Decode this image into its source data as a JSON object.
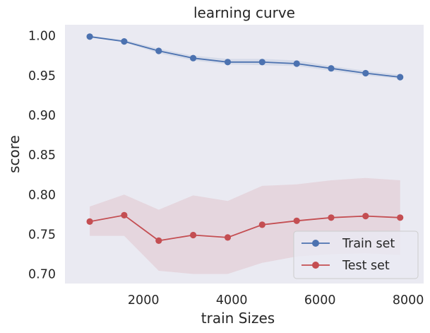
{
  "chart_data": {
    "type": "line",
    "title": "learning curve",
    "xlabel": "train Sizes",
    "ylabel": "score",
    "xlim": [
      220,
      8350
    ],
    "ylim": [
      0.688,
      1.014
    ],
    "xticks": [
      2000,
      4000,
      6000,
      8000
    ],
    "xtick_labels": [
      "2000",
      "4000",
      "6000",
      "8000"
    ],
    "yticks": [
      0.7,
      0.75,
      0.8,
      0.85,
      0.9,
      0.95,
      1.0
    ],
    "ytick_labels": [
      "0.70",
      "0.75",
      "0.80",
      "0.85",
      "0.90",
      "0.95",
      "1.00"
    ],
    "grid": false,
    "legend_position": "lower-right",
    "x": [
      782,
      1563,
      2345,
      3127,
      3909,
      4690,
      5472,
      6254,
      7035,
      7817
    ],
    "series": [
      {
        "name": "Train set",
        "color": "#4c72b0",
        "values": [
          0.999,
          0.993,
          0.981,
          0.972,
          0.967,
          0.967,
          0.965,
          0.959,
          0.953,
          0.948
        ],
        "band_upper": [
          1.0,
          0.995,
          0.984,
          0.975,
          0.971,
          0.971,
          0.969,
          0.962,
          0.956,
          0.951
        ],
        "band_lower": [
          0.998,
          0.992,
          0.978,
          0.969,
          0.964,
          0.963,
          0.962,
          0.956,
          0.95,
          0.946
        ]
      },
      {
        "name": "Test set",
        "color": "#c44e52",
        "values": [
          0.766,
          0.774,
          0.742,
          0.749,
          0.746,
          0.762,
          0.767,
          0.771,
          0.773,
          0.771
        ],
        "band_upper": [
          0.785,
          0.8,
          0.781,
          0.799,
          0.792,
          0.811,
          0.813,
          0.818,
          0.821,
          0.818
        ],
        "band_lower": [
          0.748,
          0.748,
          0.704,
          0.7,
          0.7,
          0.714,
          0.722,
          0.725,
          0.726,
          0.724
        ]
      }
    ]
  }
}
